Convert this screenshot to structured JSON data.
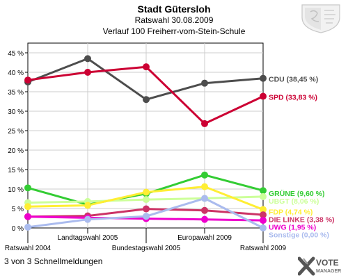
{
  "header": {
    "title": "Stadt Gütersloh",
    "subtitle": "Ratswahl 30.08.2009",
    "subtitle2": "Verlauf 100 Freiherr-vom-Stein-Schule"
  },
  "footer": {
    "text": "3 von 3 Schnellmeldungen"
  },
  "brand": {
    "line1": "VOTE",
    "line2": "MANAGER"
  },
  "chart_data": {
    "type": "line",
    "title": "Stadt Gütersloh",
    "xlabel": "",
    "ylabel": "",
    "x": [
      "Ratswahl 2004",
      "Landtagswahl 2005",
      "Bundestagswahl 2005",
      "Europawahl 2009",
      "Ratswahl 2009"
    ],
    "y_ticks": [
      "0 %",
      "5 %",
      "10 %",
      "15 %",
      "20 %",
      "25 %",
      "30 %",
      "35 %",
      "40 %",
      "45 %"
    ],
    "ylim": [
      0,
      47.5
    ],
    "grid": true,
    "series": [
      {
        "name": "CDU",
        "label": "CDU (38,45 %)",
        "color": "#4d4d4d",
        "values": [
          37.5,
          43.5,
          33.0,
          37.2,
          38.45
        ]
      },
      {
        "name": "SPD",
        "label": "SPD (33,83 %)",
        "color": "#cc0033",
        "values": [
          38.0,
          40.0,
          41.4,
          26.8,
          33.83
        ]
      },
      {
        "name": "GRÜNE",
        "label": "GRÜNE (9,60 %)",
        "color": "#33cc33",
        "values": [
          10.3,
          6.0,
          8.8,
          13.6,
          9.6
        ]
      },
      {
        "name": "UBGT",
        "label": "UBGT (8,06 %)",
        "color": "#ccff99",
        "values": [
          6.5,
          6.8,
          7.3,
          7.6,
          8.06
        ]
      },
      {
        "name": "FDP",
        "label": "FDP (4,74 %)",
        "color": "#ffee33",
        "values": [
          5.5,
          5.8,
          9.2,
          10.6,
          4.74
        ]
      },
      {
        "name": "DIE LINKE",
        "label": "DIE LINKE (3,38 %)",
        "color": "#cc3366",
        "values": [
          2.9,
          3.1,
          4.9,
          4.5,
          3.38
        ]
      },
      {
        "name": "UWG",
        "label": "UWG (1,95 %)",
        "color": "#ee00cc",
        "values": [
          2.9,
          2.6,
          2.4,
          2.2,
          1.95
        ]
      },
      {
        "name": "Sonstige",
        "label": "Sonstige (0,00 %)",
        "color": "#aabbee",
        "values": [
          0.2,
          2.2,
          3.0,
          7.6,
          0.0
        ]
      }
    ]
  }
}
